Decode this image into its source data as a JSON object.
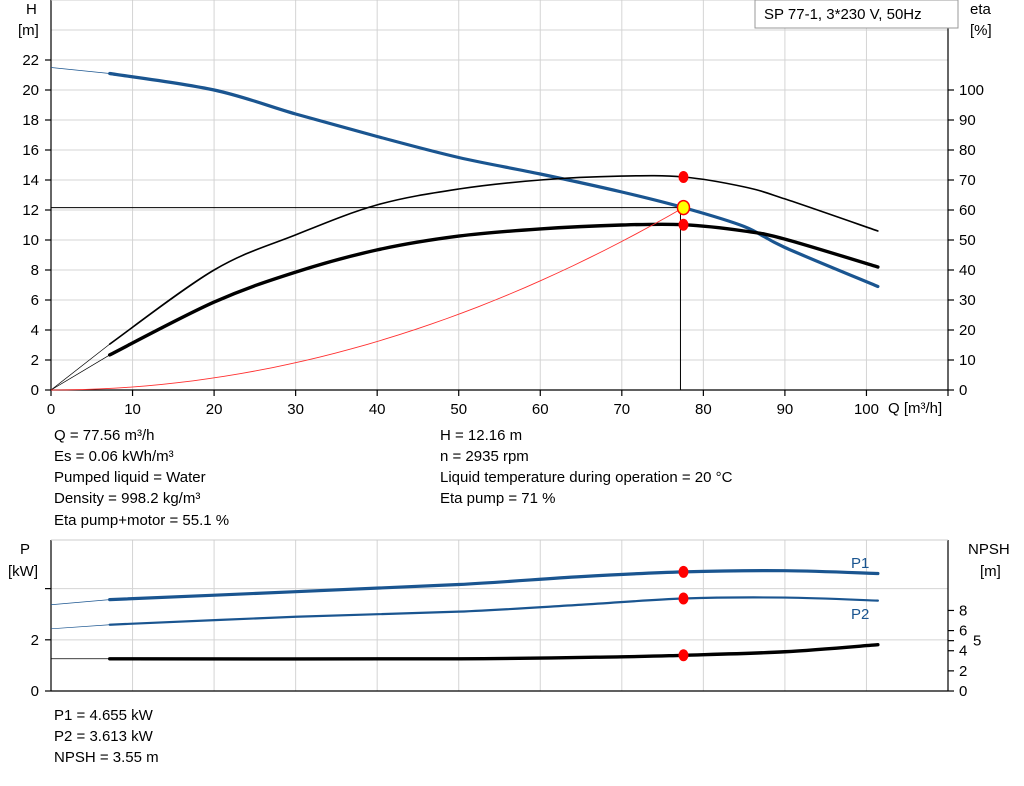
{
  "legend_box": "SP 77-1, 3*230 V, 50Hz",
  "chart_data": [
    {
      "type": "line",
      "title": "",
      "xlabel": "Q [m³/h]",
      "ylabel_left": [
        "H",
        "[m]"
      ],
      "ylabel_right": [
        "eta",
        "[%]"
      ],
      "xlim": [
        0,
        110
      ],
      "ylim_left": [
        0,
        26
      ],
      "ylim_right": [
        0,
        130
      ],
      "x_ticks": [
        0,
        10,
        20,
        30,
        40,
        50,
        60,
        70,
        80,
        90,
        100
      ],
      "y_ticks_left": [
        0,
        2,
        4,
        6,
        8,
        10,
        12,
        14,
        16,
        18,
        20,
        22
      ],
      "y_ticks_right": [
        0,
        10,
        20,
        30,
        40,
        50,
        60,
        70,
        80,
        90,
        100
      ],
      "grid": true,
      "series": [
        {
          "key": "H",
          "axis": "left",
          "color": "#1a5590",
          "width": 3.2,
          "extrapolated_from_zero": true,
          "x": [
            0,
            7.2,
            20,
            30,
            40,
            50,
            60,
            70,
            77.56,
            85,
            90,
            101.4
          ],
          "y": [
            21.5,
            21.1,
            20.0,
            18.4,
            16.9,
            15.5,
            14.4,
            13.2,
            12.16,
            10.9,
            9.5,
            6.9
          ]
        },
        {
          "key": "eta_pump",
          "axis": "right",
          "color": "#000000",
          "width": 1.6,
          "extrapolated_from_zero": true,
          "x": [
            0,
            7.2,
            20,
            30,
            40,
            50,
            60,
            70,
            77.56,
            85,
            90,
            101.4
          ],
          "y": [
            0,
            15.3,
            40,
            51.7,
            61.7,
            67,
            70,
            71.3,
            71,
            67.7,
            63.7,
            53
          ]
        },
        {
          "key": "eta_pump_motor",
          "axis": "right",
          "color": "#000000",
          "width": 3.4,
          "extrapolated_from_zero": true,
          "x": [
            0,
            7.2,
            20,
            30,
            40,
            50,
            60,
            70,
            77.56,
            85,
            90,
            101.4
          ],
          "y": [
            0,
            11.7,
            29.3,
            39.3,
            46.7,
            51.3,
            53.7,
            55,
            55.1,
            53,
            50.3,
            41
          ]
        },
        {
          "key": "system_curve",
          "axis": "left",
          "color": "#ff3030",
          "width": 0.9,
          "quadratic_through": [
            77.56,
            12.16
          ]
        }
      ],
      "operating_point": {
        "Q": 77.56,
        "H": 12.16,
        "eta_pump": 71,
        "eta_pump_motor": 55.1
      }
    },
    {
      "type": "line",
      "ylabel_left": [
        "P",
        "[kW]"
      ],
      "ylabel_right": [
        "NPSH",
        "[m]"
      ],
      "xlim": [
        0,
        110
      ],
      "ylim_left": [
        0,
        5.9
      ],
      "ylim_right": [
        0,
        15
      ],
      "y_ticks_left": [
        0,
        2,
        4
      ],
      "y_tick_labels_left": [
        "0",
        "2",
        ""
      ],
      "y_ticks_right": [
        0,
        2,
        4,
        5,
        6,
        8
      ],
      "grid": true,
      "series": [
        {
          "key": "P1",
          "name": "P1",
          "axis": "left",
          "color": "#1a5590",
          "width": 3.2,
          "x": [
            0,
            7.2,
            30,
            50,
            65,
            77.56,
            90,
            101.4
          ],
          "y": [
            3.37,
            3.57,
            3.88,
            4.16,
            4.47,
            4.655,
            4.7,
            4.59
          ]
        },
        {
          "key": "P2",
          "name": "P2",
          "axis": "left",
          "color": "#1a5590",
          "width": 2.2,
          "x": [
            0,
            7.2,
            30,
            50,
            65,
            77.56,
            90,
            101.4
          ],
          "y": [
            2.43,
            2.59,
            2.9,
            3.1,
            3.37,
            3.613,
            3.65,
            3.53
          ]
        },
        {
          "key": "NPSH",
          "axis": "right",
          "color": "#000000",
          "width": 3.4,
          "x": [
            0,
            7.2,
            50,
            70,
            77.56,
            90,
            101.4
          ],
          "y": [
            3.2,
            3.2,
            3.2,
            3.4,
            3.55,
            3.9,
            4.6
          ]
        }
      ],
      "operating_point": {
        "Q": 77.56,
        "P1": 4.655,
        "P2": 3.613,
        "NPSH": 3.55
      }
    }
  ],
  "info": {
    "col1": [
      "Q = 77.56 m³/h",
      "Es = 0.06 kWh/m³",
      "Pumped liquid = Water",
      "Density = 998.2 kg/m³",
      "Eta pump+motor = 55.1 %"
    ],
    "col2": [
      "H = 12.16 m",
      "n = 2935 rpm",
      "Liquid temperature during operation = 20 °C",
      "Eta pump = 71 %"
    ],
    "lower": [
      "P1 = 4.655 kW",
      "P2 = 3.613 kW",
      "NPSH = 3.55 m"
    ]
  }
}
